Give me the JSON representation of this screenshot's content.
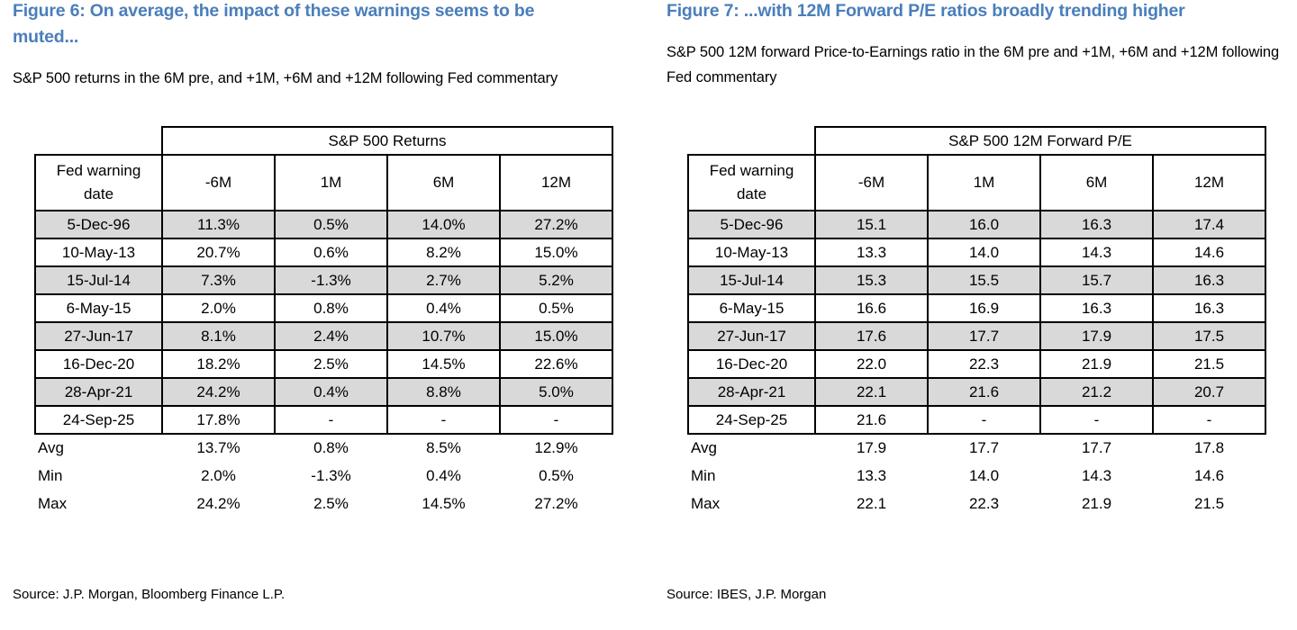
{
  "colors": {
    "title_blue": "#4a7ebb",
    "row_shade": "#d9d9d9",
    "border": "#000000",
    "background": "#ffffff"
  },
  "figures": [
    {
      "id": "figure-6",
      "title": "Figure 6: On average, the impact of these warnings seems to be muted...",
      "subtitle": "S&P 500 returns in the 6M pre, and +1M, +6M and +12M following Fed commentary",
      "source": "Source: J.P. Morgan, Bloomberg Finance L.P.",
      "table": {
        "group_header": "S&P 500 Returns",
        "row_header": "Fed warning date",
        "columns": [
          "-6M",
          "1M",
          "6M",
          "12M"
        ],
        "rows": [
          {
            "date": "5-Dec-96",
            "values": [
              "11.3%",
              "0.5%",
              "14.0%",
              "27.2%"
            ]
          },
          {
            "date": "10-May-13",
            "values": [
              "20.7%",
              "0.6%",
              "8.2%",
              "15.0%"
            ]
          },
          {
            "date": "15-Jul-14",
            "values": [
              "7.3%",
              "-1.3%",
              "2.7%",
              "5.2%"
            ]
          },
          {
            "date": "6-May-15",
            "values": [
              "2.0%",
              "0.8%",
              "0.4%",
              "0.5%"
            ]
          },
          {
            "date": "27-Jun-17",
            "values": [
              "8.1%",
              "2.4%",
              "10.7%",
              "15.0%"
            ]
          },
          {
            "date": "16-Dec-20",
            "values": [
              "18.2%",
              "2.5%",
              "14.5%",
              "22.6%"
            ]
          },
          {
            "date": "28-Apr-21",
            "values": [
              "24.2%",
              "0.4%",
              "8.8%",
              "5.0%"
            ]
          },
          {
            "date": "24-Sep-25",
            "values": [
              "17.8%",
              "-",
              "-",
              "-"
            ]
          }
        ],
        "summary": [
          {
            "label": "Avg",
            "values": [
              "13.7%",
              "0.8%",
              "8.5%",
              "12.9%"
            ]
          },
          {
            "label": "Min",
            "values": [
              "2.0%",
              "-1.3%",
              "0.4%",
              "0.5%"
            ]
          },
          {
            "label": "Max",
            "values": [
              "24.2%",
              "2.5%",
              "14.5%",
              "27.2%"
            ]
          }
        ]
      }
    },
    {
      "id": "figure-7",
      "title": "Figure 7: ...with 12M Forward P/E ratios broadly trending higher",
      "subtitle": "S&P 500 12M forward Price-to-Earnings ratio in the 6M pre and +1M, +6M and +12M following Fed commentary",
      "source": "Source: IBES, J.P. Morgan",
      "table": {
        "group_header": "S&P 500 12M Forward P/E",
        "row_header": "Fed warning date",
        "columns": [
          "-6M",
          "1M",
          "6M",
          "12M"
        ],
        "rows": [
          {
            "date": "5-Dec-96",
            "values": [
              "15.1",
              "16.0",
              "16.3",
              "17.4"
            ]
          },
          {
            "date": "10-May-13",
            "values": [
              "13.3",
              "14.0",
              "14.3",
              "14.6"
            ]
          },
          {
            "date": "15-Jul-14",
            "values": [
              "15.3",
              "15.5",
              "15.7",
              "16.3"
            ]
          },
          {
            "date": "6-May-15",
            "values": [
              "16.6",
              "16.9",
              "16.3",
              "16.3"
            ]
          },
          {
            "date": "27-Jun-17",
            "values": [
              "17.6",
              "17.7",
              "17.9",
              "17.5"
            ]
          },
          {
            "date": "16-Dec-20",
            "values": [
              "22.0",
              "22.3",
              "21.9",
              "21.5"
            ]
          },
          {
            "date": "28-Apr-21",
            "values": [
              "22.1",
              "21.6",
              "21.2",
              "20.7"
            ]
          },
          {
            "date": "24-Sep-25",
            "values": [
              "21.6",
              "-",
              "-",
              "-"
            ]
          }
        ],
        "summary": [
          {
            "label": "Avg",
            "values": [
              "17.9",
              "17.7",
              "17.7",
              "17.8"
            ]
          },
          {
            "label": "Min",
            "values": [
              "13.3",
              "14.0",
              "14.3",
              "14.6"
            ]
          },
          {
            "label": "Max",
            "values": [
              "22.1",
              "22.3",
              "21.9",
              "21.5"
            ]
          }
        ]
      }
    }
  ]
}
